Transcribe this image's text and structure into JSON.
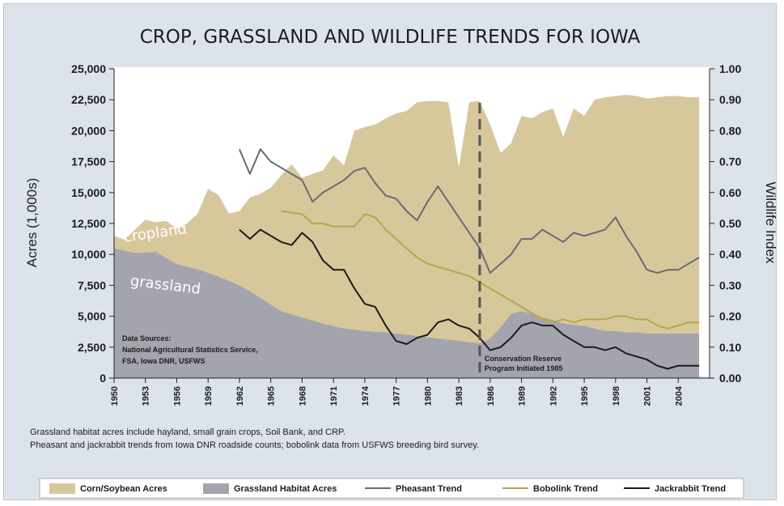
{
  "chart_data": {
    "type": "area",
    "title": "CROP, GRASSLAND AND WILDLIFE TRENDS FOR IOWA",
    "y_left_label": "Acres (1,000s)",
    "y_right_label": "Wildlife Index",
    "y_left_range": [
      0,
      25000
    ],
    "y_right_range": [
      0,
      1.0
    ],
    "y_left_ticks": [
      "0",
      "2,500",
      "5,000",
      "7,500",
      "10,000",
      "12,500",
      "15,000",
      "17,500",
      "20,000",
      "22,500",
      "25,000"
    ],
    "y_right_ticks": [
      "0.00",
      "0.10",
      "0.20",
      "0.30",
      "0.40",
      "0.50",
      "0.60",
      "0.70",
      "0.80",
      "0.90",
      "1.00"
    ],
    "x_range": [
      1950,
      2007
    ],
    "x_ticks": [
      "1950",
      "1953",
      "1956",
      "1959",
      "1962",
      "1965",
      "1968",
      "1971",
      "1974",
      "1977",
      "1980",
      "1983",
      "1986",
      "1989",
      "1992",
      "1995",
      "1998",
      "2001",
      "2004"
    ],
    "grid": false,
    "legend_position": "bottom",
    "series": [
      {
        "name": "Corn/Soybean Acres",
        "kind": "area",
        "axis": "left",
        "color": "#d7c89c",
        "points": [
          [
            1950,
            11500
          ],
          [
            1951,
            11200
          ],
          [
            1952,
            12000
          ],
          [
            1953,
            12800
          ],
          [
            1954,
            12600
          ],
          [
            1955,
            12700
          ],
          [
            1956,
            12100
          ],
          [
            1957,
            12500
          ],
          [
            1958,
            13300
          ],
          [
            1959,
            15300
          ],
          [
            1960,
            14800
          ],
          [
            1961,
            13300
          ],
          [
            1962,
            13500
          ],
          [
            1963,
            14600
          ],
          [
            1964,
            14900
          ],
          [
            1965,
            15400
          ],
          [
            1966,
            16400
          ],
          [
            1967,
            17300
          ],
          [
            1968,
            16200
          ],
          [
            1969,
            16500
          ],
          [
            1970,
            16800
          ],
          [
            1971,
            18000
          ],
          [
            1972,
            17200
          ],
          [
            1973,
            20000
          ],
          [
            1974,
            20300
          ],
          [
            1975,
            20500
          ],
          [
            1976,
            21000
          ],
          [
            1977,
            21400
          ],
          [
            1978,
            21600
          ],
          [
            1979,
            22300
          ],
          [
            1980,
            22400
          ],
          [
            1981,
            22400
          ],
          [
            1982,
            22300
          ],
          [
            1983,
            17000
          ],
          [
            1984,
            22300
          ],
          [
            1985,
            22400
          ],
          [
            1986,
            20500
          ],
          [
            1987,
            18200
          ],
          [
            1988,
            19000
          ],
          [
            1989,
            21200
          ],
          [
            1990,
            21000
          ],
          [
            1991,
            21500
          ],
          [
            1992,
            21800
          ],
          [
            1993,
            19500
          ],
          [
            1994,
            21800
          ],
          [
            1995,
            21200
          ],
          [
            1996,
            22500
          ],
          [
            1997,
            22700
          ],
          [
            1998,
            22800
          ],
          [
            1999,
            22900
          ],
          [
            2000,
            22800
          ],
          [
            2001,
            22600
          ],
          [
            2002,
            22700
          ],
          [
            2003,
            22800
          ],
          [
            2004,
            22800
          ],
          [
            2005,
            22700
          ],
          [
            2006,
            22700
          ]
        ]
      },
      {
        "name": "Grassland Habitat Acres",
        "kind": "area",
        "axis": "left",
        "color": "#a3a4ad",
        "points": [
          [
            1950,
            10500
          ],
          [
            1952,
            10100
          ],
          [
            1954,
            10200
          ],
          [
            1956,
            9200
          ],
          [
            1958,
            8800
          ],
          [
            1960,
            8200
          ],
          [
            1962,
            7500
          ],
          [
            1964,
            6500
          ],
          [
            1966,
            5400
          ],
          [
            1968,
            4900
          ],
          [
            1970,
            4400
          ],
          [
            1972,
            4000
          ],
          [
            1974,
            3800
          ],
          [
            1976,
            3700
          ],
          [
            1978,
            3500
          ],
          [
            1980,
            3300
          ],
          [
            1982,
            3100
          ],
          [
            1984,
            2900
          ],
          [
            1985,
            2800
          ],
          [
            1986,
            3200
          ],
          [
            1987,
            4100
          ],
          [
            1988,
            5200
          ],
          [
            1989,
            5400
          ],
          [
            1990,
            5200
          ],
          [
            1991,
            4900
          ],
          [
            1992,
            4700
          ],
          [
            1993,
            4400
          ],
          [
            1994,
            4300
          ],
          [
            1995,
            4200
          ],
          [
            1996,
            4000
          ],
          [
            1997,
            3800
          ],
          [
            1998,
            3800
          ],
          [
            1999,
            3700
          ],
          [
            2000,
            3700
          ],
          [
            2001,
            3600
          ],
          [
            2002,
            3600
          ],
          [
            2003,
            3600
          ],
          [
            2004,
            3600
          ],
          [
            2005,
            3600
          ],
          [
            2006,
            3600
          ]
        ]
      },
      {
        "name": "Pheasant Trend",
        "kind": "line",
        "axis": "right",
        "color": "#6a6a72",
        "points": [
          [
            1962,
            0.74
          ],
          [
            1963,
            0.66
          ],
          [
            1964,
            0.74
          ],
          [
            1965,
            0.7
          ],
          [
            1966,
            0.68
          ],
          [
            1967,
            0.66
          ],
          [
            1968,
            0.64
          ],
          [
            1969,
            0.57
          ],
          [
            1970,
            0.6
          ],
          [
            1971,
            0.62
          ],
          [
            1972,
            0.64
          ],
          [
            1973,
            0.67
          ],
          [
            1974,
            0.68
          ],
          [
            1975,
            0.63
          ],
          [
            1976,
            0.59
          ],
          [
            1977,
            0.58
          ],
          [
            1978,
            0.54
          ],
          [
            1979,
            0.51
          ],
          [
            1980,
            0.57
          ],
          [
            1981,
            0.62
          ],
          [
            1982,
            0.57
          ],
          [
            1983,
            0.52
          ],
          [
            1984,
            0.47
          ],
          [
            1985,
            0.42
          ],
          [
            1986,
            0.34
          ],
          [
            1987,
            0.37
          ],
          [
            1988,
            0.4
          ],
          [
            1989,
            0.45
          ],
          [
            1990,
            0.45
          ],
          [
            1991,
            0.48
          ],
          [
            1992,
            0.46
          ],
          [
            1993,
            0.44
          ],
          [
            1994,
            0.47
          ],
          [
            1995,
            0.46
          ],
          [
            1996,
            0.47
          ],
          [
            1997,
            0.48
          ],
          [
            1998,
            0.52
          ],
          [
            1999,
            0.46
          ],
          [
            2000,
            0.41
          ],
          [
            2001,
            0.35
          ],
          [
            2002,
            0.34
          ],
          [
            2003,
            0.35
          ],
          [
            2004,
            0.35
          ],
          [
            2005,
            0.37
          ],
          [
            2006,
            0.39
          ]
        ]
      },
      {
        "name": "Bobolink Trend",
        "kind": "line",
        "axis": "right",
        "color": "#b3a84a",
        "points": [
          [
            1966,
            0.54
          ],
          [
            1968,
            0.53
          ],
          [
            1969,
            0.5
          ],
          [
            1970,
            0.5
          ],
          [
            1971,
            0.49
          ],
          [
            1972,
            0.49
          ],
          [
            1973,
            0.49
          ],
          [
            1974,
            0.53
          ],
          [
            1975,
            0.52
          ],
          [
            1976,
            0.48
          ],
          [
            1977,
            0.45
          ],
          [
            1978,
            0.42
          ],
          [
            1979,
            0.39
          ],
          [
            1980,
            0.37
          ],
          [
            1981,
            0.36
          ],
          [
            1982,
            0.35
          ],
          [
            1983,
            0.34
          ],
          [
            1984,
            0.33
          ],
          [
            1985,
            0.31
          ],
          [
            1986,
            0.29
          ],
          [
            1987,
            0.27
          ],
          [
            1988,
            0.25
          ],
          [
            1989,
            0.23
          ],
          [
            1990,
            0.21
          ],
          [
            1991,
            0.19
          ],
          [
            1992,
            0.18
          ],
          [
            1993,
            0.19
          ],
          [
            1994,
            0.18
          ],
          [
            1995,
            0.19
          ],
          [
            1996,
            0.19
          ],
          [
            1997,
            0.19
          ],
          [
            1998,
            0.2
          ],
          [
            1999,
            0.2
          ],
          [
            2000,
            0.19
          ],
          [
            2001,
            0.19
          ],
          [
            2002,
            0.17
          ],
          [
            2003,
            0.16
          ],
          [
            2004,
            0.17
          ],
          [
            2005,
            0.18
          ],
          [
            2006,
            0.18
          ]
        ]
      },
      {
        "name": "Jackrabbit Trend",
        "kind": "line",
        "axis": "right",
        "color": "#1a1a1a",
        "points": [
          [
            1962,
            0.48
          ],
          [
            1963,
            0.45
          ],
          [
            1964,
            0.48
          ],
          [
            1965,
            0.46
          ],
          [
            1966,
            0.44
          ],
          [
            1967,
            0.43
          ],
          [
            1968,
            0.47
          ],
          [
            1969,
            0.44
          ],
          [
            1970,
            0.38
          ],
          [
            1971,
            0.35
          ],
          [
            1972,
            0.35
          ],
          [
            1973,
            0.29
          ],
          [
            1974,
            0.24
          ],
          [
            1975,
            0.23
          ],
          [
            1976,
            0.17
          ],
          [
            1977,
            0.12
          ],
          [
            1978,
            0.11
          ],
          [
            1979,
            0.13
          ],
          [
            1980,
            0.14
          ],
          [
            1981,
            0.18
          ],
          [
            1982,
            0.19
          ],
          [
            1983,
            0.17
          ],
          [
            1984,
            0.16
          ],
          [
            1985,
            0.13
          ],
          [
            1986,
            0.09
          ],
          [
            1987,
            0.1
          ],
          [
            1988,
            0.13
          ],
          [
            1989,
            0.17
          ],
          [
            1990,
            0.18
          ],
          [
            1991,
            0.17
          ],
          [
            1992,
            0.17
          ],
          [
            1993,
            0.14
          ],
          [
            1994,
            0.12
          ],
          [
            1995,
            0.1
          ],
          [
            1996,
            0.1
          ],
          [
            1997,
            0.09
          ],
          [
            1998,
            0.1
          ],
          [
            1999,
            0.08
          ],
          [
            2000,
            0.07
          ],
          [
            2001,
            0.06
          ],
          [
            2002,
            0.04
          ],
          [
            2003,
            0.03
          ],
          [
            2004,
            0.04
          ],
          [
            2005,
            0.04
          ],
          [
            2006,
            0.04
          ]
        ]
      }
    ],
    "marker_year": 1985,
    "area_labels": {
      "cropland": "cropland",
      "grassland": "grassland"
    },
    "annotations": {
      "sources": [
        "Data Sources:",
        "National Agricultural Statistics Service,",
        "FSA, Iowa DNR, USFWS"
      ],
      "crp": [
        "Conservation Reserve",
        "Program Initiated 1985"
      ]
    },
    "notes": [
      "Grassland habitat acres include hayland, small grain crops, Soil Bank, and CRP.",
      "Pheasant and jackrabbit trends from Iowa DNR roadside counts; bobolink data from USFWS breeding bird survey."
    ]
  }
}
